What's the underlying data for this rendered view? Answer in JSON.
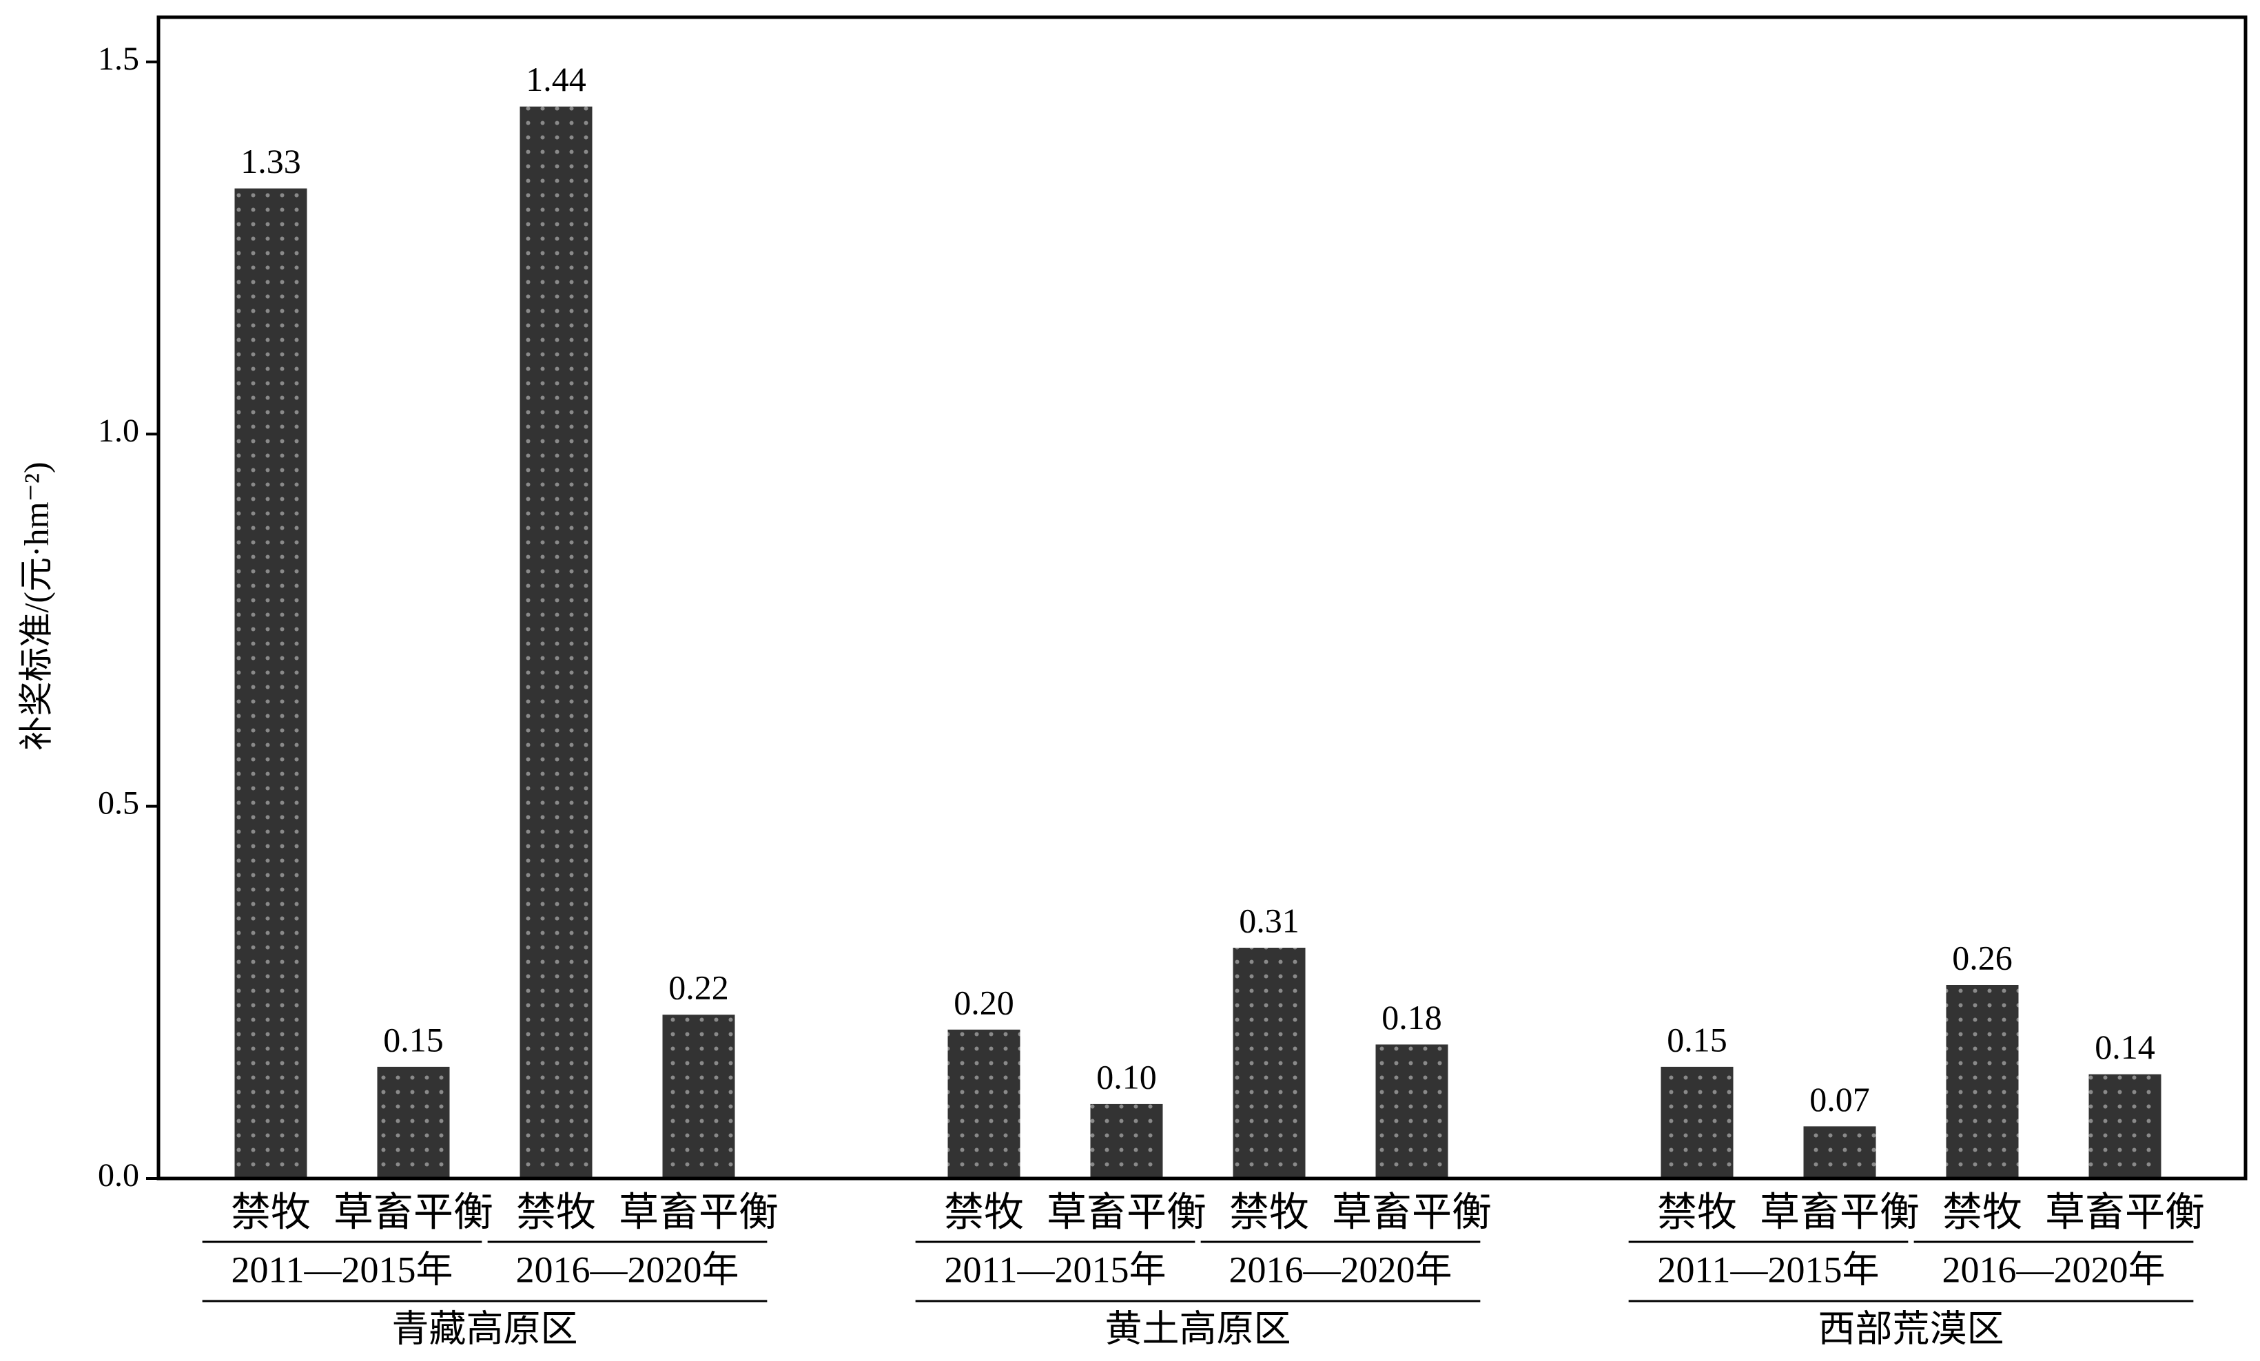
{
  "chart_data": {
    "type": "bar",
    "y_label": "补奖标准/(元·hm⁻²)",
    "categories": [
      "禁牧",
      "草畜平衡",
      "禁牧",
      "草畜平衡",
      "禁牧",
      "草畜平衡",
      "禁牧",
      "草畜平衡",
      "禁牧",
      "草畜平衡",
      "禁牧",
      "草畜平衡"
    ],
    "periods": [
      "2011—2015年",
      "2016—2020年",
      "2011—2015年",
      "2016—2020年",
      "2011—2015年",
      "2016—2020年"
    ],
    "regions": [
      "青藏高原区",
      "黄土高原区",
      "西部荒漠区"
    ],
    "values": [
      1.33,
      0.15,
      1.44,
      0.22,
      0.2,
      0.1,
      0.31,
      0.18,
      0.15,
      0.07,
      0.26,
      0.14
    ],
    "value_labels": [
      "1.33",
      "0.15",
      "1.44",
      "0.22",
      "0.20",
      "0.10",
      "0.31",
      "0.18",
      "0.15",
      "0.07",
      "0.26",
      "0.14"
    ],
    "color": "#333333",
    "ylim": [
      0,
      1.56
    ],
    "yticks": [
      {
        "value": 0,
        "label": "0.0"
      },
      0.5,
      {
        "value": 1,
        "label": "1.0"
      },
      1.5
    ]
  }
}
